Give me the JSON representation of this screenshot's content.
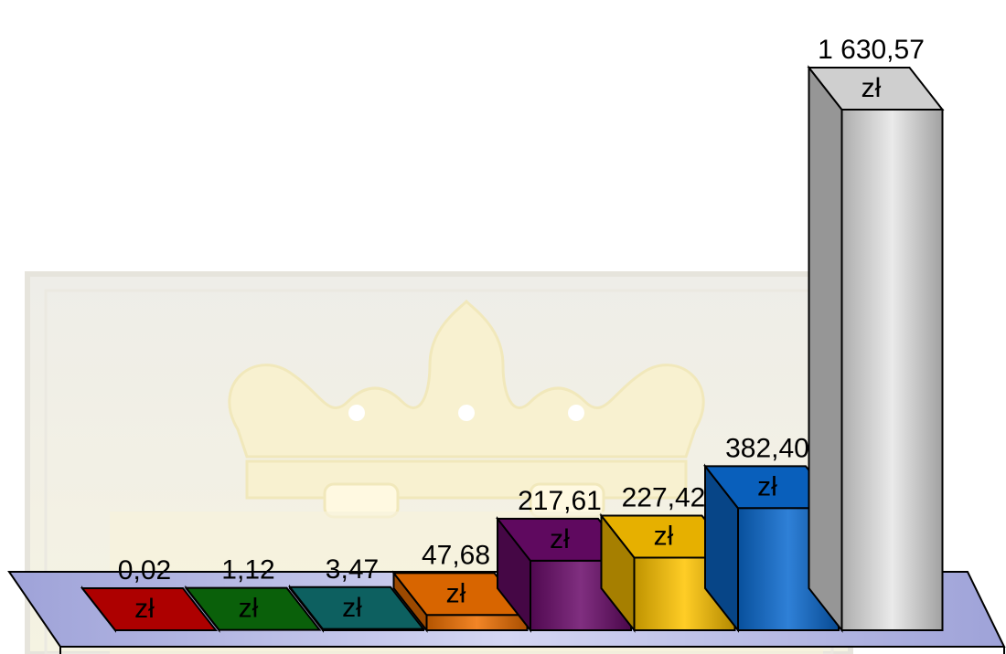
{
  "chart_data": {
    "type": "bar",
    "style": "3d",
    "categories": [
      "",
      "",
      "",
      "",
      "",
      "",
      "",
      ""
    ],
    "values": [
      0.02,
      1.12,
      3.47,
      47.68,
      217.61,
      227.42,
      382.4,
      1630.57
    ],
    "data_labels": [
      [
        "0,02",
        "zł"
      ],
      [
        "1,12",
        "zł"
      ],
      [
        "3,47",
        "zł"
      ],
      [
        "47,68",
        "zł"
      ],
      [
        "217,61",
        "zł"
      ],
      [
        "227,42",
        "zł"
      ],
      [
        "382,40",
        "zł"
      ],
      [
        "1 630,57",
        "zł"
      ]
    ],
    "colors": [
      "#c00000",
      "#0b6b0b",
      "#0e6b6b",
      "#f07000",
      "#6a0a6a",
      "#ffc400",
      "#0a6ad0",
      "#e6e6e6"
    ],
    "ylim": [
      0,
      1630.57
    ],
    "grid": false,
    "legend": "none",
    "title": "",
    "xlabel": "",
    "ylabel": ""
  }
}
